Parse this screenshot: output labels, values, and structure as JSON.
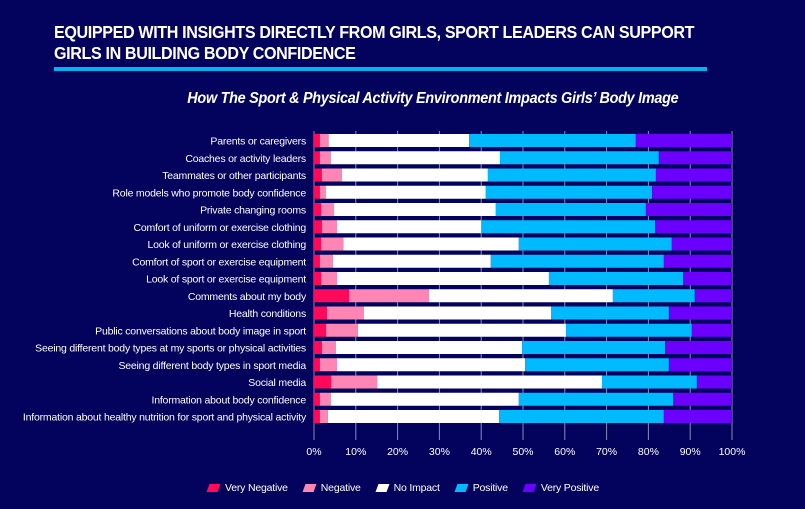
{
  "header": {
    "headline_line1": "EQUIPPED WITH INSIGHTS DIRECTLY FROM GIRLS, SPORT LEADERS CAN SUPPORT",
    "headline_line2": "GIRLS IN BUILDING BODY CONFIDENCE"
  },
  "colors": {
    "background": "#03035e",
    "accent_rule": "#00b4f0",
    "gridline": "#8a8ab8"
  },
  "chart_data": {
    "type": "bar",
    "orientation": "horizontal",
    "stacked": true,
    "title": "How The Sport & Physical Activity Environment Impacts Girls’ Body Image",
    "xlabel": "",
    "ylabel": "",
    "xlim": [
      0,
      100
    ],
    "x_ticks": [
      "0%",
      "10%",
      "20%",
      "30%",
      "40%",
      "50%",
      "60%",
      "70%",
      "80%",
      "90%",
      "100%"
    ],
    "grid": "vertical",
    "legend_position": "bottom-center",
    "categories": [
      "Parents or caregivers",
      "Coaches or activity leaders",
      "Teammates or other participants",
      "Role models who promote body confidence",
      "Private changing rooms",
      "Comfort of uniform or exercise clothing",
      "Look of uniform or exercise clothing",
      "Comfort of sport or exercise equipment",
      "Look of sport or exercise equipment",
      "Comments about my body",
      "Health conditions",
      "Public conversations about body image in sport",
      "Seeing different body types at my sports or physical activities",
      "Seeing different body types in sport media",
      "Social media",
      "Information about body confidence",
      "Information about healthy nutrition for sport and physical activity"
    ],
    "series": [
      {
        "name": "Very Negative",
        "color": "#ff0a5a",
        "values": [
          1.4,
          1.4,
          1.9,
          1.4,
          1.7,
          1.9,
          1.7,
          1.4,
          1.7,
          8.4,
          3.1,
          2.9,
          1.9,
          1.4,
          4.1,
          1.4,
          1.4
        ]
      },
      {
        "name": "Negative",
        "color": "#ff85b4",
        "values": [
          2.1,
          2.6,
          4.8,
          1.4,
          3.1,
          3.6,
          5.3,
          3.1,
          3.8,
          19.1,
          8.8,
          7.6,
          3.3,
          4.1,
          11.0,
          2.6,
          1.9
        ]
      },
      {
        "name": "No Impact",
        "color": "#ffffff",
        "values": [
          33.6,
          40.5,
          34.9,
          38.3,
          38.7,
          34.5,
          42.0,
          37.8,
          50.7,
          44.0,
          44.8,
          49.8,
          44.6,
          45.0,
          53.8,
          45.0,
          41.0
        ]
      },
      {
        "name": "Positive",
        "color": "#00baff",
        "values": [
          39.9,
          38.0,
          40.2,
          39.8,
          35.9,
          41.6,
          36.6,
          41.4,
          32.1,
          19.6,
          28.2,
          30.1,
          34.2,
          34.4,
          22.7,
          36.9,
          39.4
        ]
      },
      {
        "name": "Very Positive",
        "color": "#6b00ff",
        "values": [
          23.0,
          17.5,
          18.2,
          19.1,
          20.6,
          18.4,
          14.4,
          16.3,
          11.7,
          8.9,
          15.1,
          9.6,
          16.0,
          15.1,
          8.4,
          14.1,
          16.3
        ]
      }
    ]
  }
}
